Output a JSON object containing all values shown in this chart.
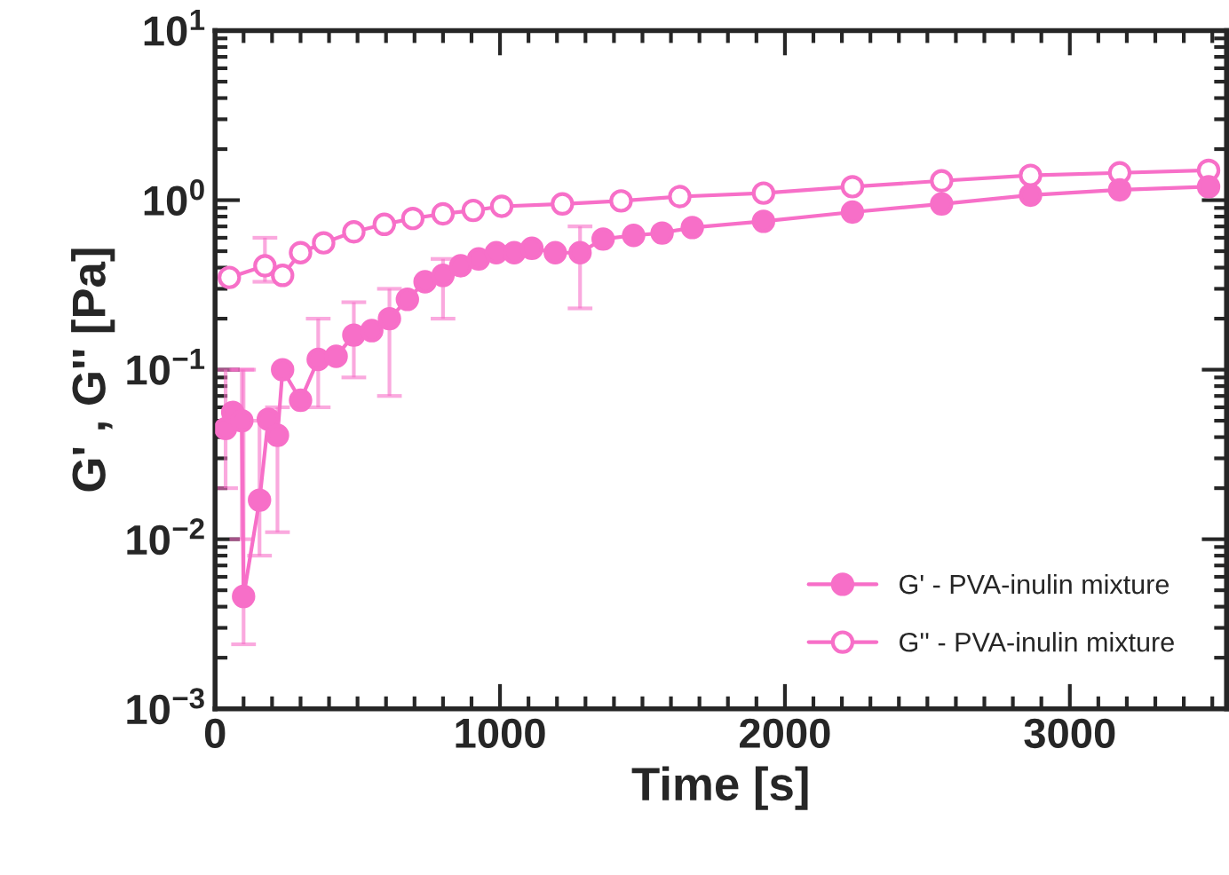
{
  "chart_data": {
    "type": "line",
    "xlabel": "Time [s]",
    "ylabel": "G' , G'' [Pa]",
    "xlim": [
      0,
      3550
    ],
    "xticks": [
      0,
      1000,
      2000,
      3000
    ],
    "ylim": [
      0.001,
      10
    ],
    "yticks": [
      {
        "value": 0.001,
        "label": "10$^{−3}$"
      },
      {
        "value": 0.01,
        "label": "10$^{−2}$"
      },
      {
        "value": 0.1,
        "label": "10$^{−1}$"
      },
      {
        "value": 1,
        "label": "10$^{0}$"
      },
      {
        "value": 10,
        "label": "10$^{1}$"
      }
    ],
    "log": "y",
    "legend": "bottom right",
    "marker": "circle",
    "grid": false,
    "series": [
      {
        "name": "G' - PVA-inulin mixture",
        "color": "#f76fc8",
        "x": [
          37,
          62,
          94,
          100,
          156,
          187,
          219,
          237,
          300,
          362,
          425,
          487,
          550,
          612,
          675,
          737,
          800,
          862,
          925,
          987,
          1050,
          1112,
          1194,
          1281,
          1362,
          1469,
          1569,
          1675,
          1925,
          2237,
          2550,
          2862,
          3175,
          3487
        ],
        "values": [
          0.045,
          0.056,
          0.05,
          0.0046,
          0.017,
          0.051,
          0.041,
          0.1,
          0.066,
          0.115,
          0.12,
          0.16,
          0.17,
          0.2,
          0.26,
          0.33,
          0.36,
          0.41,
          0.45,
          0.49,
          0.49,
          0.52,
          0.49,
          0.49,
          0.59,
          0.62,
          0.64,
          0.69,
          0.75,
          0.85,
          0.95,
          1.07,
          1.15,
          1.2
        ],
        "errors": [
          [
            0.02,
            0.1
          ],
          null,
          [
            0.01,
            0.1
          ],
          [
            0.0024,
            0.1
          ],
          [
            0.008,
            0.05
          ],
          null,
          [
            0.011,
            0.06
          ],
          null,
          null,
          [
            0.06,
            0.2
          ],
          null,
          [
            0.09,
            0.25
          ],
          null,
          [
            0.07,
            0.3
          ],
          null,
          null,
          [
            0.2,
            0.45
          ],
          null,
          null,
          null,
          null,
          null,
          null,
          [
            0.23,
            0.7
          ],
          null,
          null,
          null,
          null,
          null,
          null,
          null,
          null,
          null,
          null
        ]
      },
      {
        "name": "G'' - PVA-inulin mixture",
        "color": "#f76fc8",
        "x": [
          50,
          175,
          237,
          300,
          381,
          487,
          594,
          694,
          800,
          906,
          1006,
          1219,
          1425,
          1631,
          1925,
          2237,
          2550,
          2862,
          3175,
          3487
        ],
        "values": [
          0.35,
          0.41,
          0.36,
          0.49,
          0.56,
          0.65,
          0.72,
          0.78,
          0.83,
          0.87,
          0.92,
          0.95,
          0.99,
          1.05,
          1.1,
          1.2,
          1.3,
          1.4,
          1.45,
          1.5
        ],
        "errors": [
          null,
          [
            0.33,
            0.6
          ],
          null,
          null,
          null,
          null,
          null,
          null,
          null,
          null,
          null,
          null,
          null,
          null,
          null,
          null,
          null,
          null,
          null,
          null
        ]
      }
    ]
  }
}
